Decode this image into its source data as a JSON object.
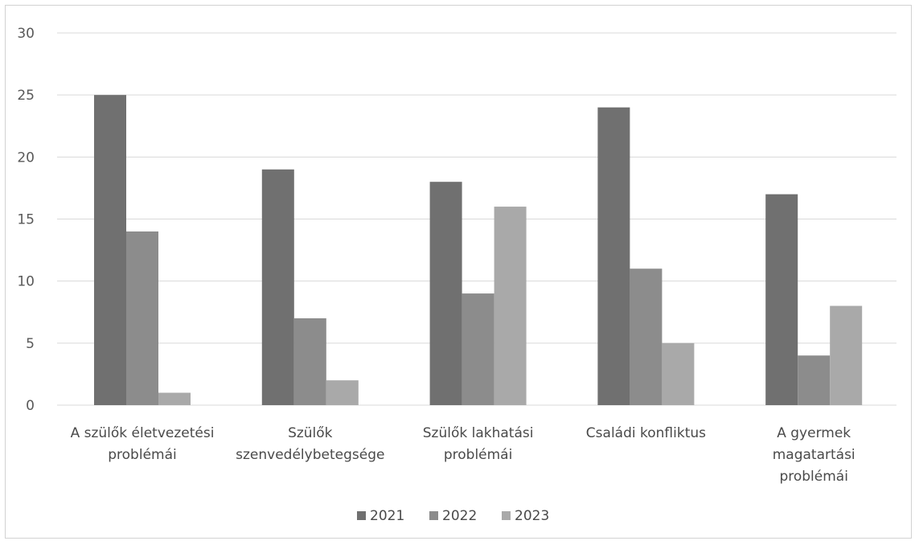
{
  "chart_data": {
    "type": "bar",
    "title": "",
    "xlabel": "",
    "ylabel": "",
    "ylim": [
      0,
      30
    ],
    "yticks": [
      0,
      5,
      10,
      15,
      20,
      25,
      30
    ],
    "grid": true,
    "legend_position": "bottom",
    "categories": [
      [
        "A szülők életvezetési",
        "problémái"
      ],
      [
        "Szülők",
        "szenvedélybetegsége"
      ],
      [
        "Szülők lakhatási",
        "problémái"
      ],
      [
        "Családi konfliktus"
      ],
      [
        "A gyermek",
        "magatartási",
        "problémái"
      ]
    ],
    "series": [
      {
        "name": "2021",
        "color": "#707070",
        "values": [
          25,
          19,
          18,
          24,
          17
        ]
      },
      {
        "name": "2022",
        "color": "#8c8c8c",
        "values": [
          14,
          7,
          9,
          11,
          4
        ]
      },
      {
        "name": "2023",
        "color": "#a9a9a9",
        "values": [
          1,
          2,
          16,
          5,
          8
        ]
      }
    ]
  }
}
